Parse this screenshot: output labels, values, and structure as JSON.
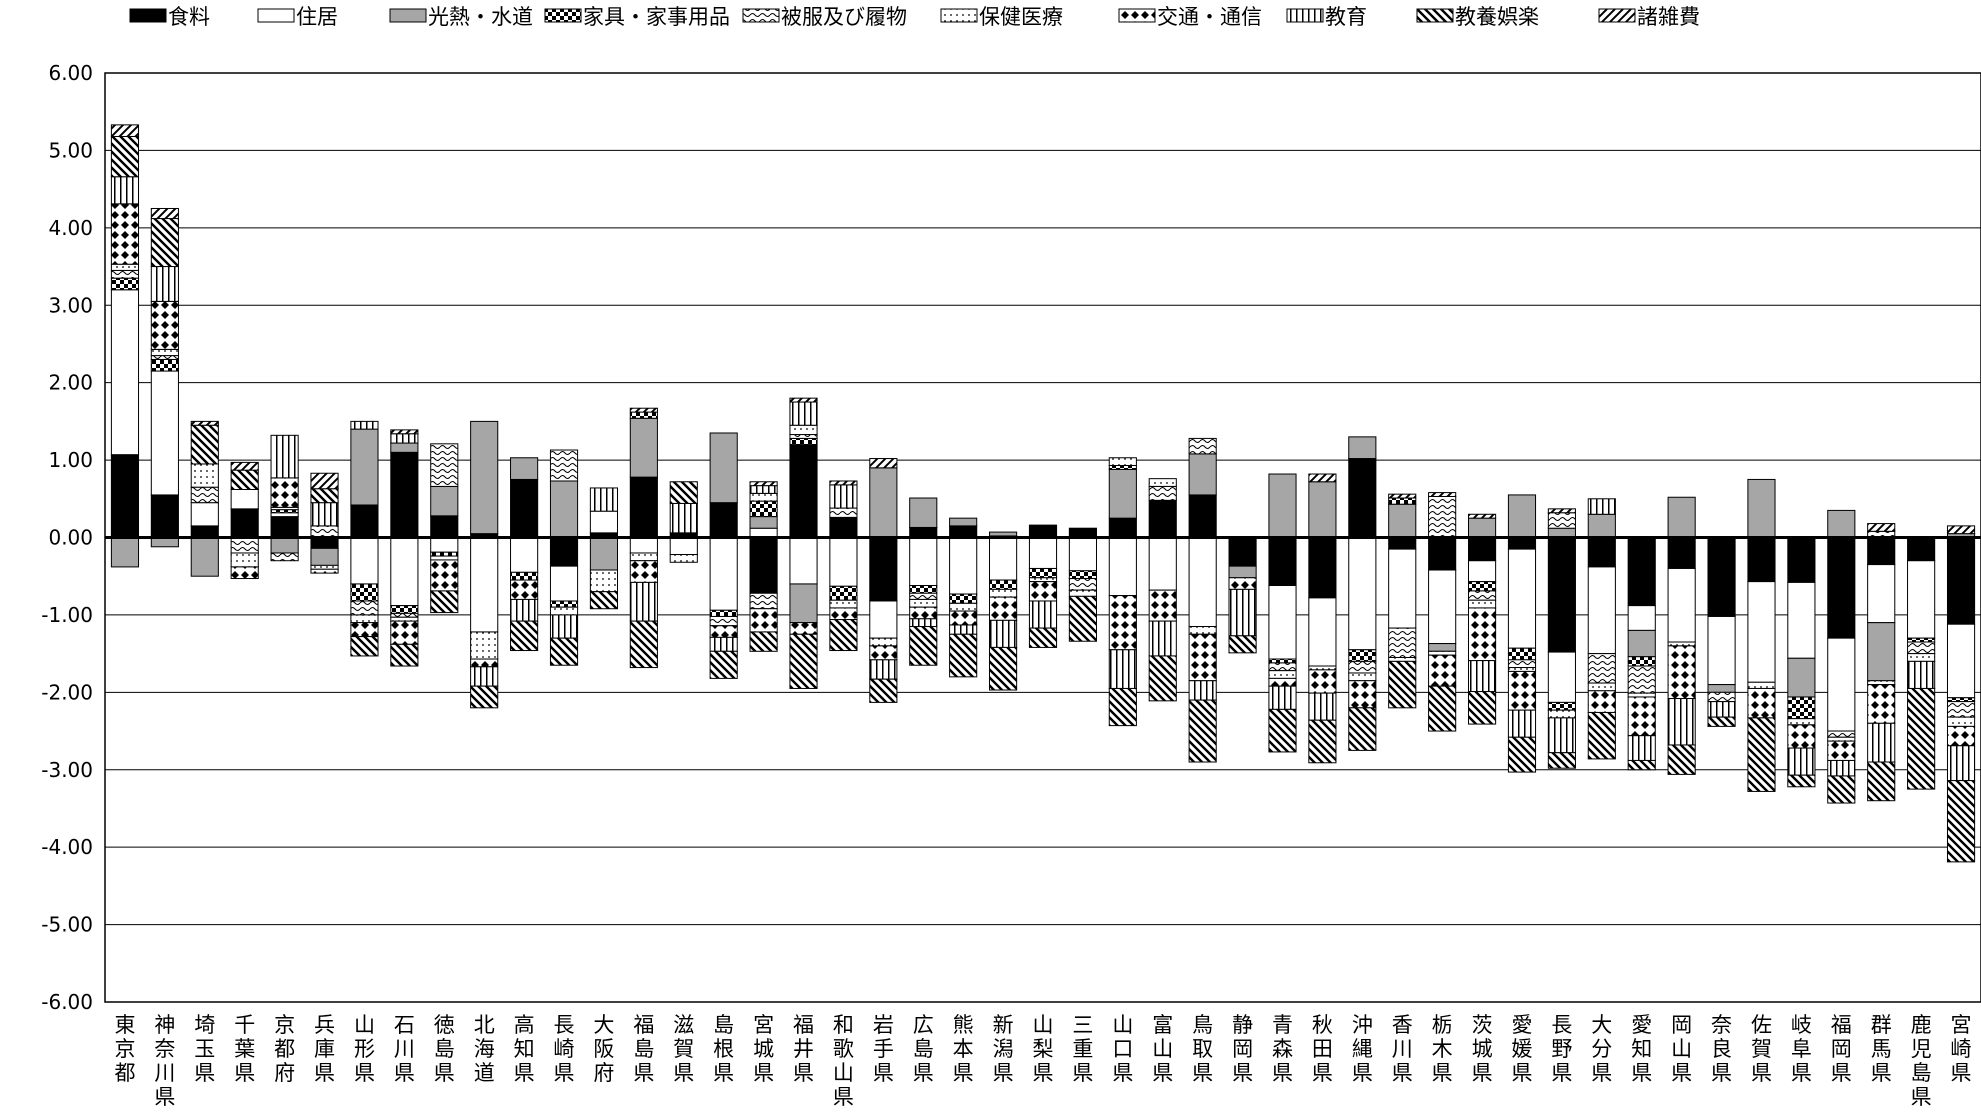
{
  "chart_data": {
    "type": "bar",
    "stacked": true,
    "legend_position": "top",
    "grid": true,
    "ylim": [
      -6,
      6
    ],
    "yticks": [
      "6.00",
      "5.00",
      "4.00",
      "3.00",
      "2.00",
      "1.00",
      "0.00",
      "-1.00",
      "-2.00",
      "-3.00",
      "-4.00",
      "-5.00",
      "-6.00"
    ],
    "categories": [
      "東京都",
      "神奈川県",
      "埼玉県",
      "千葉県",
      "京都府",
      "兵庫県",
      "山形県",
      "石川県",
      "徳島県",
      "北海道",
      "高知県",
      "長崎県",
      "大阪府",
      "福島県",
      "滋賀県",
      "島根県",
      "宮城県",
      "福井県",
      "和歌山県",
      "岩手県",
      "広島県",
      "熊本県",
      "新潟県",
      "山梨県",
      "三重県",
      "山口県",
      "富山県",
      "鳥取県",
      "静岡県",
      "青森県",
      "秋田県",
      "沖縄県",
      "香川県",
      "栃木県",
      "茨城県",
      "愛媛県",
      "長野県",
      "大分県",
      "愛知県",
      "岡山県",
      "奈良県",
      "佐賀県",
      "岐阜県",
      "福岡県",
      "群馬県",
      "鹿児島県",
      "宮崎県"
    ],
    "series": [
      {
        "name": "食料",
        "pattern": "solid-black",
        "values": [
          1.07,
          0.55,
          0.15,
          0.37,
          0.27,
          -0.14,
          0.42,
          1.1,
          0.28,
          0.05,
          0.75,
          -0.37,
          0.06,
          0.78,
          0.06,
          0.45,
          -0.72,
          1.2,
          0.26,
          -0.82,
          0.13,
          0.15,
          0.02,
          0.16,
          0.12,
          0.25,
          0.48,
          0.55,
          -0.37,
          -0.62,
          -0.78,
          1.02,
          -0.15,
          -0.42,
          -0.3,
          -0.15,
          -1.48,
          -0.38,
          -0.88,
          -0.4,
          -1.02,
          -0.57,
          -0.58,
          -1.3,
          -0.35,
          -0.3,
          -1.12
        ]
      },
      {
        "name": "住居",
        "pattern": "white",
        "values": [
          2.13,
          1.6,
          0.3,
          0.25,
          0.05,
          0.0,
          -0.6,
          -0.88,
          -0.19,
          -1.22,
          -0.45,
          -0.45,
          0.28,
          -0.2,
          -0.22,
          -0.94,
          0.12,
          -0.6,
          -0.63,
          -0.48,
          -0.62,
          -0.73,
          -0.55,
          -0.4,
          -0.43,
          -0.75,
          -0.68,
          -1.15,
          0.0,
          -0.95,
          -0.88,
          -1.45,
          -1.02,
          -0.95,
          -0.27,
          -1.28,
          -0.65,
          -1.12,
          -0.32,
          -0.95,
          -0.88,
          -1.3,
          -0.98,
          -1.2,
          -0.75,
          -1.0,
          -0.95
        ]
      },
      {
        "name": "光熱・水道",
        "pattern": "gray",
        "values": [
          -0.38,
          -0.12,
          -0.5,
          0.0,
          -0.2,
          -0.22,
          0.98,
          0.12,
          0.38,
          1.45,
          0.28,
          0.73,
          -0.42,
          0.76,
          0.0,
          0.9,
          0.15,
          -0.5,
          0.0,
          0.9,
          0.38,
          0.1,
          0.05,
          0.0,
          0.0,
          0.63,
          0.0,
          0.53,
          -0.15,
          0.82,
          0.72,
          0.28,
          0.43,
          -0.1,
          0.25,
          0.55,
          0.12,
          0.3,
          -0.34,
          0.52,
          -0.1,
          0.75,
          -0.5,
          0.35,
          -0.75,
          0.0,
          0.05
        ]
      },
      {
        "name": "家具・家事用品",
        "pattern": "checker",
        "values": [
          0.15,
          0.15,
          0.0,
          0.0,
          0.04,
          0.0,
          -0.22,
          -0.1,
          -0.05,
          0.0,
          -0.1,
          -0.08,
          0.0,
          0.08,
          0.0,
          -0.08,
          0.2,
          0.08,
          -0.18,
          0.0,
          -0.1,
          -0.12,
          -0.12,
          -0.12,
          -0.1,
          0.05,
          0.0,
          0.0,
          0.0,
          -0.05,
          0.0,
          -0.15,
          0.08,
          0.0,
          -0.12,
          -0.15,
          -0.1,
          0.0,
          -0.12,
          0.0,
          0.0,
          0.0,
          -0.28,
          0.0,
          0.0,
          -0.05,
          -0.05
        ]
      },
      {
        "name": "被服及び履物",
        "pattern": "wave",
        "values": [
          0.1,
          0.05,
          0.2,
          -0.2,
          -0.1,
          0.15,
          -0.18,
          -0.05,
          0.55,
          0.0,
          0.0,
          0.4,
          0.0,
          0.0,
          0.0,
          -0.12,
          -0.2,
          0.05,
          0.12,
          0.0,
          -0.08,
          0.0,
          0.0,
          0.0,
          -0.15,
          0.0,
          0.18,
          0.2,
          0.0,
          -0.1,
          0.0,
          -0.15,
          -0.38,
          0.53,
          -0.12,
          -0.1,
          0.2,
          -0.38,
          -0.35,
          0.0,
          -0.12,
          0.0,
          0.0,
          -0.08,
          0.08,
          -0.15,
          -0.2
        ]
      },
      {
        "name": "保健医療",
        "pattern": "dots",
        "values": [
          0.08,
          0.08,
          0.3,
          -0.18,
          0.03,
          -0.05,
          -0.1,
          -0.05,
          -0.05,
          -0.35,
          0.0,
          -0.1,
          -0.28,
          -0.1,
          -0.1,
          0.0,
          0.1,
          0.12,
          -0.1,
          -0.1,
          -0.1,
          -0.1,
          -0.1,
          -0.05,
          -0.08,
          0.1,
          0.1,
          -0.1,
          0.0,
          -0.1,
          -0.05,
          -0.1,
          0.0,
          -0.05,
          -0.1,
          -0.05,
          -0.1,
          -0.1,
          -0.05,
          -0.05,
          0.0,
          -0.08,
          -0.08,
          -0.05,
          -0.05,
          -0.1,
          -0.12
        ]
      },
      {
        "name": "交通・通信",
        "pattern": "diamond",
        "values": [
          0.78,
          0.62,
          0.0,
          -0.15,
          0.38,
          -0.05,
          -0.18,
          -0.3,
          -0.4,
          -0.1,
          -0.25,
          0.0,
          0.0,
          -0.28,
          0.0,
          -0.15,
          -0.3,
          -0.15,
          -0.15,
          -0.18,
          -0.15,
          -0.18,
          -0.3,
          -0.25,
          0.0,
          -0.7,
          -0.4,
          -0.6,
          -0.15,
          -0.1,
          -0.3,
          -0.35,
          -0.05,
          -0.4,
          -0.68,
          -0.5,
          0.0,
          -0.28,
          -0.5,
          -0.68,
          0.0,
          -0.38,
          -0.3,
          -0.25,
          -0.5,
          0.0,
          -0.25
        ]
      },
      {
        "name": "教育",
        "pattern": "vlines",
        "values": [
          0.35,
          0.45,
          0.0,
          0.0,
          0.55,
          0.3,
          0.1,
          0.12,
          0.0,
          -0.25,
          -0.28,
          -0.3,
          0.3,
          -0.5,
          0.38,
          -0.18,
          0.1,
          0.3,
          0.3,
          -0.25,
          -0.1,
          -0.12,
          -0.35,
          -0.35,
          0.0,
          -0.5,
          -0.45,
          -0.25,
          -0.6,
          -0.3,
          -0.35,
          0.0,
          0.0,
          0.0,
          -0.4,
          -0.35,
          -0.45,
          0.2,
          -0.32,
          -0.6,
          -0.2,
          0.0,
          -0.35,
          -0.2,
          -0.5,
          -0.35,
          -0.45
        ]
      },
      {
        "name": "教養娯楽",
        "pattern": "diag-back",
        "values": [
          0.52,
          0.62,
          0.5,
          0.25,
          0.0,
          0.18,
          -0.25,
          -0.28,
          -0.28,
          -0.28,
          -0.38,
          -0.35,
          -0.22,
          -0.6,
          0.28,
          -0.35,
          -0.25,
          -0.7,
          -0.4,
          -0.3,
          -0.5,
          -0.55,
          -0.55,
          -0.25,
          -0.58,
          -0.48,
          -0.58,
          -0.8,
          -0.22,
          -0.55,
          -0.55,
          -0.55,
          -0.6,
          -0.58,
          -0.42,
          -0.45,
          -0.2,
          -0.6,
          -0.12,
          -0.38,
          -0.12,
          -0.95,
          -0.15,
          -0.35,
          -0.5,
          -1.3,
          -1.05
        ]
      },
      {
        "name": "諸雑費",
        "pattern": "diag-fwd",
        "values": [
          0.15,
          0.13,
          0.05,
          0.1,
          0.0,
          0.2,
          0.0,
          0.05,
          0.0,
          0.0,
          0.0,
          0.0,
          0.0,
          0.05,
          0.0,
          0.0,
          0.05,
          0.05,
          0.05,
          0.12,
          0.0,
          0.0,
          0.0,
          0.0,
          0.0,
          0.0,
          0.0,
          0.0,
          0.0,
          0.0,
          0.1,
          0.0,
          0.05,
          0.05,
          0.05,
          0.0,
          0.05,
          0.0,
          0.0,
          0.0,
          0.0,
          0.0,
          0.0,
          0.0,
          0.1,
          0.0,
          0.1
        ]
      }
    ]
  }
}
